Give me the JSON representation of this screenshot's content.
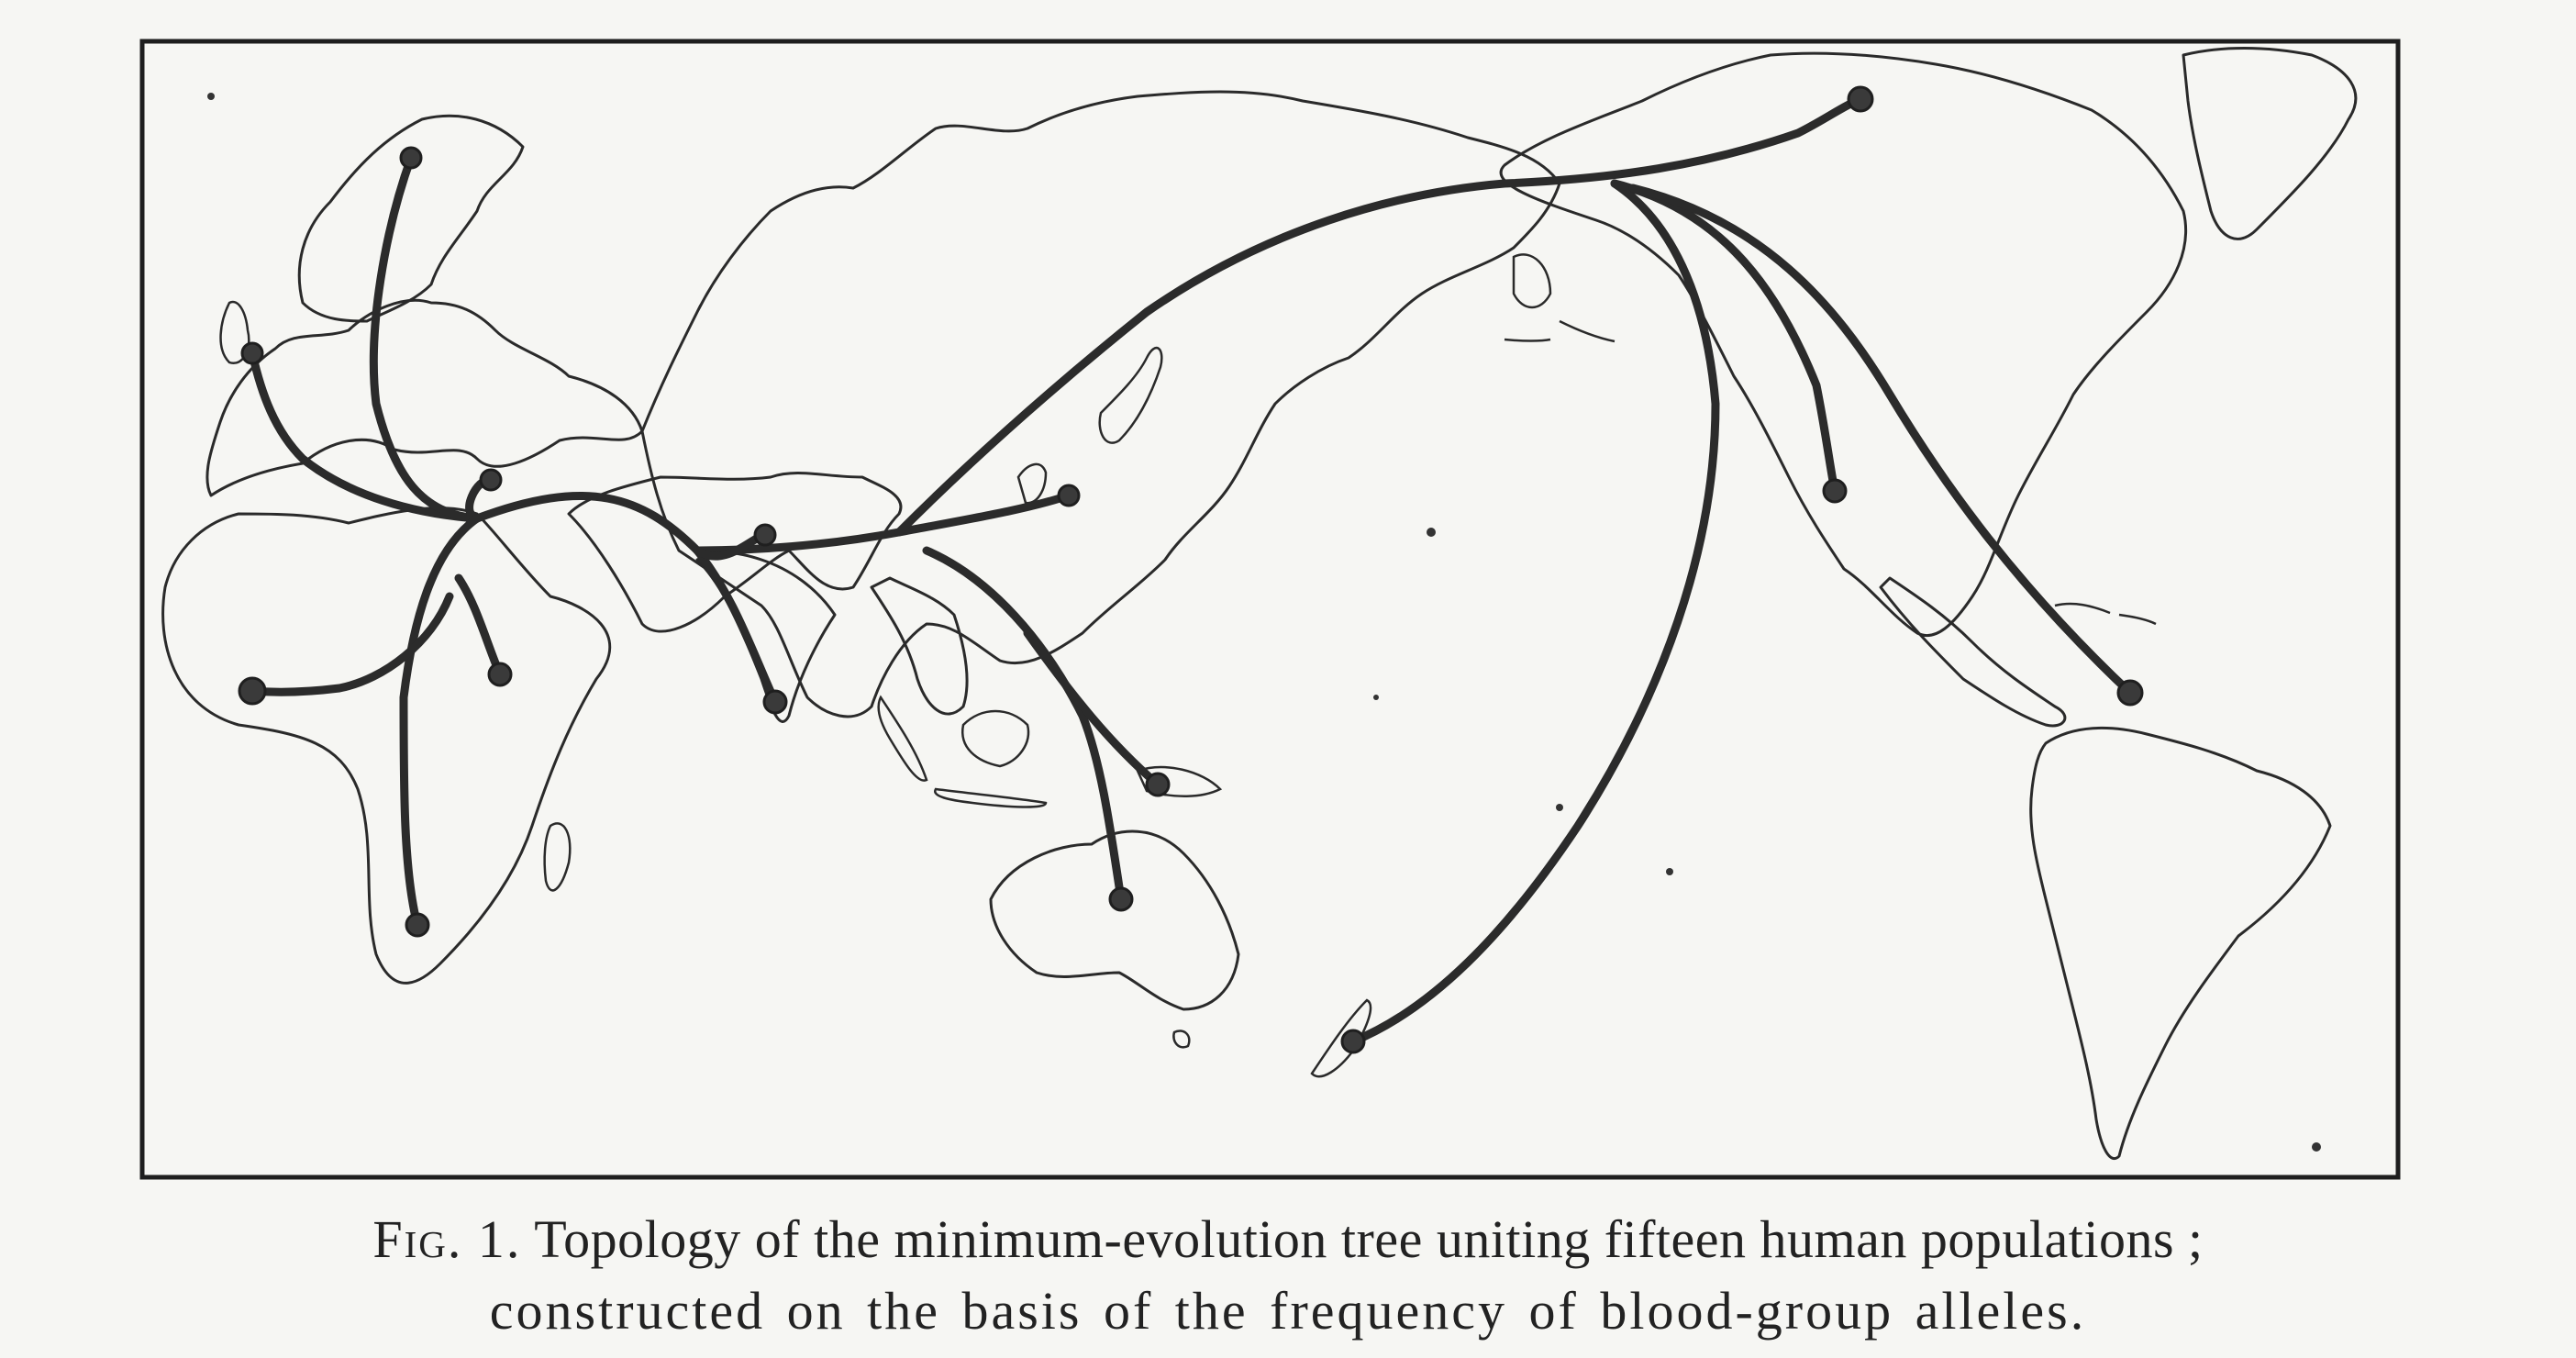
{
  "figure": {
    "caption": {
      "label": "Fig. 1.",
      "line1": "Topology of the minimum-evolution tree uniting fifteen human populations ;",
      "line2": "constructed on the basis of the frequency of blood-group alleles."
    },
    "population_count": 15,
    "colors": {
      "paper": "#f6f6f3",
      "ink": "#2b2b2b"
    }
  }
}
